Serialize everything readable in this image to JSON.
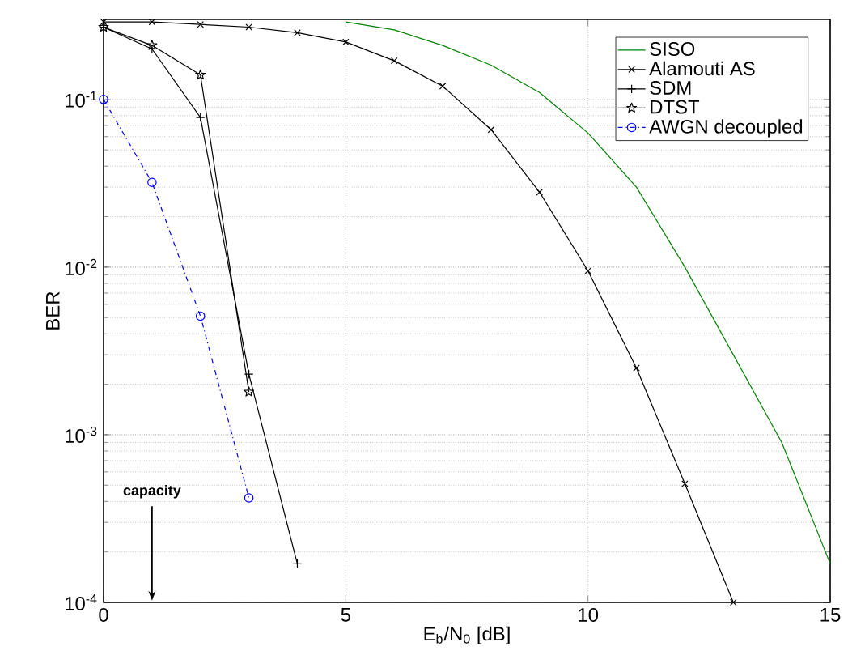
{
  "chart_data": {
    "type": "line",
    "xlabel": "E$_{b}$/N$_{0}$ [dB]",
    "ylabel": "BER",
    "log": "y",
    "grid": true,
    "legend": "top right",
    "xlim": [
      0,
      15
    ],
    "xticks": [
      0,
      5,
      10,
      15
    ],
    "ylim": [
      0.0001,
      0.3
    ],
    "yticks": [
      {
        "value": 0.0001,
        "label": "10$^{-4}$"
      },
      {
        "value": 0.001,
        "label": "10$^{-3}$"
      },
      {
        "value": 0.01,
        "label": "10$^{-2}$"
      },
      {
        "value": 0.1,
        "label": "10$^{-1}$"
      }
    ],
    "series": [
      {
        "name": "SISO",
        "color": "#008000",
        "marker": "none",
        "line_style": "solid",
        "x": [
          5,
          6,
          7,
          8,
          9,
          10,
          11,
          12,
          13,
          14,
          15
        ],
        "values": [
          0.29,
          0.26,
          0.21,
          0.16,
          0.11,
          0.063,
          0.03,
          0.01,
          0.003,
          0.0009,
          0.00017
        ]
      },
      {
        "name": "Alamouti AS",
        "color": "#000000",
        "marker": "cross",
        "line_style": "solid",
        "x": [
          0,
          1,
          2,
          3,
          4,
          5,
          6,
          7,
          8,
          9,
          10,
          11,
          12,
          13
        ],
        "values": [
          0.29,
          0.29,
          0.28,
          0.27,
          0.25,
          0.22,
          0.17,
          0.12,
          0.066,
          0.028,
          0.0095,
          0.0025,
          0.00051,
          0.0001
        ]
      },
      {
        "name": "SDM",
        "color": "#000000",
        "marker": "plus",
        "line_style": "solid",
        "x": [
          0,
          1,
          2,
          3,
          4
        ],
        "values": [
          0.27,
          0.2,
          0.078,
          0.0023,
          0.00017
        ]
      },
      {
        "name": "DTST",
        "color": "#000000",
        "marker": "star",
        "line_style": "solid",
        "x": [
          0,
          1,
          2,
          3
        ],
        "values": [
          0.27,
          0.21,
          0.14,
          0.0018
        ]
      },
      {
        "name": "AWGN decoupled",
        "color": "#0000ff",
        "marker": "circle",
        "line_style": "dashdot",
        "x": [
          0,
          1,
          2,
          3
        ],
        "values": [
          0.1,
          0.032,
          0.0051,
          0.00042
        ]
      }
    ],
    "annotations": [
      "capacity"
    ]
  }
}
